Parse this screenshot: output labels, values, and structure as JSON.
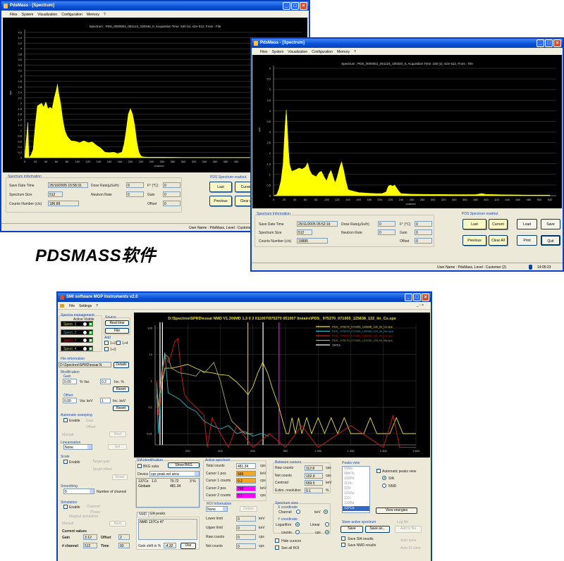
{
  "caption": "PDSMASS软件",
  "pdsmass_windows": [
    {
      "title": "PdsMass - [Spectrum]",
      "menu": [
        "Files",
        "System",
        "Visualization",
        "Configuration",
        "Memory",
        "?"
      ],
      "info": {
        "group": "Spectrum Information",
        "save_date_label": "Save Date Time",
        "save_date": "25/10/2005 15:58:31",
        "size_label": "Spectrum Size",
        "size": "512",
        "counts_label": "Counts Number (c/s)",
        "counts": "186.89",
        "dose_label": "Dose Rate(µSv/h)",
        "dose": "0",
        "neutron_label": "Neutron Rate",
        "neutron": "0",
        "temp_label": "F° (°C)",
        "temp": "0",
        "gain_label": "Gain",
        "gain": "0",
        "offset_label": "Offset",
        "offset": "0"
      },
      "readout": {
        "group": "PDS Spectrum readout",
        "last": "Last",
        "current": "Current",
        "previous": "Previous",
        "clear_all": "Clear All"
      },
      "status": "User Name : PdsMass, Level : Customer (2)"
    },
    {
      "title": "PdsMass - [Spectrum]",
      "menu": [
        "Files",
        "System",
        "Visualization",
        "Configuration",
        "Memory",
        "?"
      ],
      "info": {
        "group": "Spectrum Information",
        "save_date_label": "Save Date Time",
        "save_date": "25/11/2005 05:52:16",
        "size_label": "Spectrum Size",
        "size": "512",
        "counts_label": "Counts Number (c/s)",
        "counts": "19885",
        "dose_label": "Dose Rate(µSv/h)",
        "dose": "0",
        "neutron_label": "Neutron Rate",
        "neutron": "0",
        "temp_label": "F° (°C)",
        "temp": "0",
        "gain_label": "Gain",
        "gain": "0",
        "offset_label": "Offset",
        "offset": "0"
      },
      "readout": {
        "group": "PDS Spectrum readout",
        "last": "Last",
        "current": "Current",
        "previous": "Previous",
        "clear_all": "Clear All"
      },
      "load": "Load",
      "save": "Save",
      "print": "Print",
      "quit": "Quit",
      "status": "User Name : PdsMass, Level : Customer (2)",
      "time": "14:05:23"
    }
  ],
  "smi_window": {
    "title": "SMI software MGP Instruments v2.0",
    "menu": [
      "File",
      "Settings",
      "?"
    ],
    "spectra": {
      "group": "Spectra management",
      "header": "Active Visible",
      "items": [
        {
          "label": "Spect. 1",
          "color": "#e8d84a"
        },
        {
          "label": "Spect. 2",
          "color": "#3cc0c8"
        },
        {
          "label": "Spect. 3",
          "color": "#e02020"
        },
        {
          "label": "Spect. 4",
          "color": "#c8d070"
        }
      ]
    },
    "source": {
      "group": "Source",
      "real_time": "Real time",
      "file": "File"
    },
    "add": {
      "group": "Add",
      "opts": [
        "1+2",
        "1+4",
        "1+3"
      ]
    },
    "file_info": {
      "group": "File information",
      "path": "D:\\Spectres\\SPRD\\essai N",
      "details": "Details"
    },
    "modification": {
      "group": "Modification",
      "gain": "Gain",
      "gain_val": "0.00",
      "gain_var": "% Var.",
      "gain_inc": "0.2",
      "gain_inc_lbl": "Inc. %",
      "reset": "Reset",
      "offset": "Offset",
      "offset_val": "0.00",
      "offset_var": "Var. keV",
      "offset_inc": "1",
      "offset_inc_lbl": "Inc. keV"
    },
    "sweeping": {
      "group": "Automatic sweeping",
      "enable": "Enable",
      "gain": "Gain",
      "offset": "Offset",
      "manual": "Manual",
      "next": "Next"
    },
    "linearisation": {
      "group": "Linearisation",
      "value": "None",
      "set": "Set"
    },
    "scale": {
      "group": "Scale",
      "enable": "Enable",
      "target_gain": "Target gain",
      "target_offset": "Target offset",
      "reset": "Reset"
    },
    "smoothing": {
      "group": "Smoothing",
      "value": "5",
      "label": "Number of channel"
    },
    "simulation": {
      "group": "Simulation",
      "enable": "Enable",
      "channel": "Channel",
      "phase": "Phase",
      "magical": "Magical simulation",
      "manual": "Manual",
      "next": "Next"
    },
    "current": {
      "title": "Current values",
      "gain_lbl": "Gain",
      "gain": "3.12",
      "offset_lbl": "Offset",
      "offset": "2",
      "channel_lbl": "# channel",
      "channel": "512",
      "time_lbl": "Time",
      "time": "93"
    },
    "sia": {
      "group": "SIA identification",
      "bkg": "BKG subs",
      "show_bkg": "Show BKG",
      "device_lbl": "Device",
      "device": "cps peak net area",
      "rows": [
        [
          "137Cs",
          "1.0",
          "70.72",
          "3 %"
        ],
        [
          "Globale",
          "",
          "481.34",
          ""
        ]
      ]
    },
    "tabs": [
      "NMD",
      "SIA peaks"
    ],
    "nmd_text": "NMD 137Cs 47",
    "gain_shift_lbl": "Gain shift in %",
    "gain_shift": "-4.32",
    "use": "Use",
    "active": {
      "group": "Active spectrum",
      "rows": [
        {
          "label": "Total counts",
          "value": "481.34",
          "unit": "cps",
          "color": "#ffffff"
        },
        {
          "label": "Cursor 1 pos",
          "value": "569",
          "unit": "keV",
          "color": "#f5a623"
        },
        {
          "label": "Cursor 1 counts",
          "value": "0.2",
          "unit": "cps",
          "color": "#f5a623"
        },
        {
          "label": "Cursor 2 pos",
          "value": "760",
          "unit": "keV",
          "color": "#ff00ff"
        },
        {
          "label": "Cursor 2 counts",
          "value": "0.1",
          "unit": "cps",
          "color": "#ff00ff"
        }
      ]
    },
    "roi": {
      "group": "ROI Information",
      "value": "None",
      "delete": "Delete",
      "rows": [
        {
          "label": "Lower limit",
          "value": "0",
          "unit": "keV"
        },
        {
          "label": "Upper limit",
          "value": "0",
          "unit": "keV"
        },
        {
          "label": "Raw counts",
          "value": "0",
          "unit": "cps"
        },
        {
          "label": "Net counts",
          "value": "0",
          "unit": "cps"
        }
      ]
    },
    "between": {
      "group": "Between cursors",
      "rows": [
        {
          "label": "Raw counts",
          "value": "112.8",
          "unit": "cps"
        },
        {
          "label": "Net counts",
          "value": "102.9",
          "unit": "cps"
        },
        {
          "label": "Centroid",
          "value": "659.5",
          "unit": "keV"
        },
        {
          "label": "Estim. resolution",
          "value": "9.1",
          "unit": "%"
        }
      ]
    },
    "view": {
      "group": "Spectrum view",
      "x_coord": "X coordinate",
      "channel": "Channel",
      "kev": "keV",
      "y_coord": "Y coordinate",
      "log": "Logarithm",
      "linear": "Linear",
      "counts": "counts",
      "cps": "cps",
      "hide": "Hide cursors",
      "see_roi": "See all ROI"
    },
    "peaks": {
      "group": "Peaks view",
      "list": [
        "99Mo",
        "99mTc",
        "103Pd",
        "111In",
        "125I",
        "133Xe",
        "131I",
        "133Ba",
        "137Cs"
      ],
      "auto": "Automatic peaks view",
      "sia": "SIA",
      "nmd": "NMD",
      "view_energies": "View energies"
    },
    "store": {
      "group": "Store active spectrum",
      "save": "Save",
      "save_as": "Save as...",
      "save_sia": "Save SIA results",
      "save_nmd": "Save NMD results"
    },
    "log": {
      "group": "Log file",
      "add": "Add to file",
      "auto_save": "Auto save",
      "auto_fl": "Auto FL-time"
    }
  },
  "chart_data": [
    {
      "type": "area",
      "title": "Spectrum : PDS_0000001_051124_100340_0, Acquisition Time :100 (s), size 512, From : File",
      "xlabel": "channel",
      "ylabel": "cps",
      "xlim": [
        0,
        512
      ],
      "ylim": [
        0,
        4.6
      ],
      "xticks": [
        0,
        20,
        40,
        60,
        80,
        100,
        120,
        140,
        160,
        180,
        200,
        220,
        240,
        260,
        280,
        300,
        320,
        340,
        360,
        380,
        400
      ],
      "yticks": [
        0,
        0.2,
        0.4,
        0.6,
        0.8,
        1,
        1.2,
        1.4,
        1.6,
        1.8,
        2,
        2.2,
        2.4,
        2.6,
        2.8,
        3,
        3.2,
        3.4,
        3.6,
        3.8,
        4,
        4.2,
        4.4,
        4.6
      ],
      "grid": true,
      "color": "#ffff00",
      "x": [
        0,
        6,
        8,
        12,
        16,
        20,
        24,
        28,
        32,
        36,
        40,
        44,
        48,
        52,
        56,
        60,
        62,
        64,
        68,
        72,
        76,
        80,
        84,
        88,
        96,
        104,
        112,
        120,
        128,
        136,
        144,
        152,
        160,
        168,
        176,
        184,
        188,
        192,
        196,
        200,
        204,
        208,
        212,
        216,
        220,
        224,
        232,
        260,
        300,
        350,
        400,
        450,
        512
      ],
      "y": [
        0,
        1.3,
        0,
        0.1,
        0.3,
        1.2,
        1.9,
        1.95,
        2.0,
        1.85,
        2.05,
        1.8,
        1.85,
        1.8,
        2.2,
        2.5,
        2.7,
        2.4,
        2.0,
        1.4,
        1.0,
        0.8,
        0.7,
        0.62,
        0.6,
        0.55,
        0.62,
        0.55,
        0.58,
        0.45,
        0.35,
        0.2,
        0.18,
        0.2,
        0.15,
        0.2,
        0.5,
        1.0,
        1.6,
        1.8,
        1.6,
        1.2,
        0.6,
        0.2,
        0.06,
        0.03,
        0.02,
        0.02,
        0.01,
        0.01,
        0.01,
        0.01,
        0.01
      ]
    },
    {
      "type": "area",
      "title": "Spectrum : PDS_0000001_051124_100340_0, Acquisition Time :100 (s), size 512, From : File",
      "xlabel": "channel",
      "ylabel": "cps",
      "xlim": [
        0,
        520
      ],
      "ylim": [
        0,
        6
      ],
      "xticks": [
        0,
        20,
        40,
        60,
        80,
        100,
        120,
        140,
        160,
        180,
        200,
        220,
        240,
        260,
        280,
        300,
        320,
        340,
        360,
        380,
        400,
        420,
        440,
        460,
        480,
        500,
        520
      ],
      "yticks": [
        0,
        0.5,
        1,
        1.5,
        2,
        2.5,
        3,
        3.5,
        4,
        4.5,
        5,
        5.5,
        6
      ],
      "grid": true,
      "color": "#ffff00",
      "x": [
        0,
        6,
        10,
        14,
        18,
        20,
        22,
        24,
        26,
        28,
        30,
        34,
        40,
        48,
        54,
        60,
        64,
        68,
        72,
        80,
        86,
        90,
        96,
        100,
        104,
        108,
        112,
        116,
        120,
        124,
        128,
        132,
        136,
        140,
        144,
        152,
        160,
        176,
        192,
        204,
        212,
        216,
        220,
        224,
        228,
        232,
        236,
        240,
        260,
        300,
        340,
        380,
        392,
        400,
        440,
        480,
        520
      ],
      "y": [
        0,
        0.05,
        0.3,
        0.7,
        1.5,
        2.5,
        3.4,
        4.05,
        3.2,
        2.2,
        1.5,
        1.15,
        1.2,
        1.3,
        1.25,
        1.35,
        1.55,
        1.2,
        1.0,
        0.9,
        1.1,
        1.15,
        0.85,
        0.7,
        1.0,
        1.2,
        0.9,
        0.6,
        0.9,
        1.3,
        1.6,
        1.2,
        0.7,
        0.3,
        0.25,
        0.2,
        0.15,
        0.12,
        0.1,
        0.1,
        0.18,
        0.45,
        0.5,
        0.45,
        0.5,
        0.35,
        0.2,
        0.1,
        0.07,
        0.06,
        0.05,
        0.05,
        0.1,
        0.06,
        0.04,
        0.03,
        0.03
      ]
    },
    {
      "type": "line",
      "title": "D:\\Spectres\\SPRD\\essai NMD V1.3\\NMD 1.3 0 3 011007\\975270 051007 linéaire\\PDS_  975270_071005_125838_132_lin_Cs.spe",
      "xlim": [
        0,
        1600
      ],
      "ylim": [
        0.003,
        100
      ],
      "yscale": "log",
      "xticks": [
        200,
        400,
        600,
        800,
        1000,
        1200,
        1400,
        1600
      ],
      "xticklabels": [
        "200",
        "400",
        "600",
        "800",
        "1 000",
        "1 200",
        "1 400",
        "1 600"
      ],
      "yticks": [
        100,
        10,
        1,
        0.1,
        0.01
      ],
      "yticklabels": [
        "100",
        "10",
        "1",
        "0,1",
        "0,01"
      ],
      "grid": true,
      "legend": "top-right",
      "series": [
        {
          "name": "PDS_  975270_071005_125838_132_lin_Cs.spe",
          "color": "#e8e040",
          "x": [
            10,
            20,
            30,
            45,
            60,
            80,
            100,
            150,
            200,
            250,
            300,
            350,
            400,
            450,
            500,
            540,
            570,
            600,
            630,
            660,
            690,
            720,
            760,
            790,
            805,
            820,
            840,
            860,
            880,
            900,
            930,
            960,
            1000,
            1040,
            1080,
            1120,
            1160,
            1200,
            1240,
            1280,
            1320,
            1360,
            1400,
            1440,
            1480,
            1520,
            1560,
            1600
          ],
          "y": [
            0.3,
            0.05,
            0.2,
            1,
            3,
            3,
            3,
            3.5,
            4.2,
            3,
            2.2,
            2.0,
            1.7,
            1.6,
            0.9,
            0.5,
            0.3,
            0.6,
            2,
            5,
            2,
            0.5,
            0.1,
            0.02,
            0.01,
            0.01,
            0.04,
            0.01,
            0.04,
            0.01,
            0.04,
            0.01,
            0.04,
            0.01,
            0.04,
            0.01,
            0.04,
            0.01,
            0.01,
            0.01,
            0.04,
            0.01,
            0.01,
            0.01,
            0.04,
            0.01,
            0.01,
            0.01
          ]
        },
        {
          "name": "PDS_  975270_071005_125950_120_lin_Am.spe",
          "color": "#30b8c8",
          "x": [
            10,
            20,
            30,
            45,
            60,
            70,
            80,
            100,
            150,
            200,
            250,
            300,
            350,
            400,
            450,
            500,
            550,
            600,
            650,
            700
          ],
          "y": [
            0.5,
            0.01,
            0.1,
            3,
            12,
            2,
            0.35,
            0.3,
            0.2,
            0.1,
            0.07,
            0.03,
            0.02,
            0.015,
            0.02,
            0.01,
            0.012,
            0.008,
            0.01,
            0.008
          ]
        },
        {
          "name": "PDS_  975270_071005_125845_131_lin_Eu.spe",
          "color": "#d02020",
          "x": [
            10,
            20,
            40,
            60,
            80,
            100,
            120,
            140,
            160,
            180,
            200,
            250,
            300,
            320,
            350,
            400,
            450,
            500,
            600,
            700,
            800,
            900,
            1000,
            1200,
            1400,
            1460,
            1500,
            1600
          ],
          "y": [
            1,
            0.05,
            1,
            10,
            5,
            10,
            30,
            40,
            2,
            0.3,
            0.2,
            0.1,
            0.05,
            0.003,
            0.04,
            0.01,
            0.003,
            0.02,
            0.003,
            0.01,
            0.003,
            0.02,
            0.003,
            0.02,
            0.003,
            0.05,
            0.003,
            0.003
          ]
        },
        {
          "name": "PDS_  975270_071005_123752_133_lin_Ba.spe",
          "color": "#a8a870",
          "x": [
            10,
            20,
            40,
            60,
            80,
            100,
            150,
            200,
            250,
            280,
            300,
            330,
            360,
            400,
            440,
            470,
            500,
            550,
            600
          ],
          "y": [
            0.8,
            0.1,
            2,
            10,
            8,
            3,
            2,
            1.8,
            1.5,
            2.5,
            2,
            3,
            5,
            1,
            0.1,
            0.03,
            0.02,
            0.01,
            0.01
          ]
        },
        {
          "name": "137Cs",
          "color": "#ffffff",
          "x": [],
          "y": []
        }
      ],
      "markers": [
        {
          "x": 30,
          "color": "#ffffff"
        },
        {
          "x": 45,
          "color": "#ffffff"
        },
        {
          "x": 569,
          "color": "#f5a623"
        },
        {
          "x": 662,
          "color": "#ffffff"
        },
        {
          "x": 760,
          "color": "#ff00ff"
        }
      ]
    }
  ]
}
